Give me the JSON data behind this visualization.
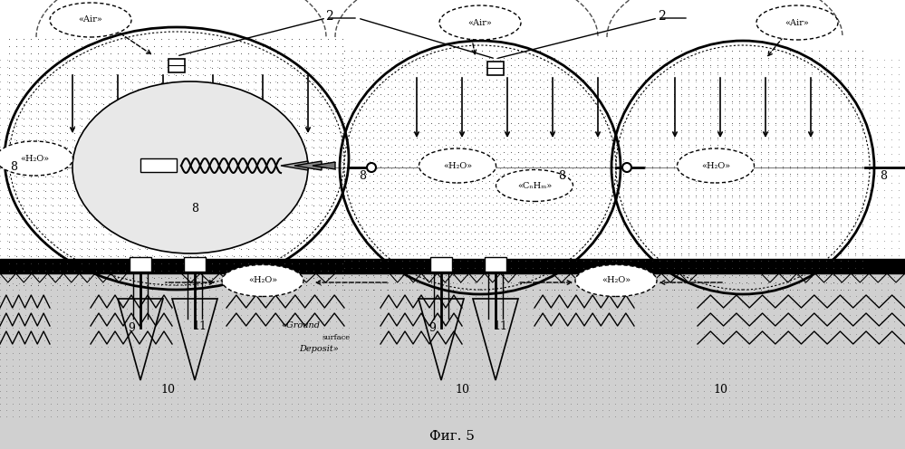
{
  "title": "Фиг. 5",
  "bg_color": "#ffffff",
  "fig_width": 9.99,
  "fig_height": 4.96,
  "labels": {
    "air": "«Air»",
    "h2o": "«H₂O»",
    "cnhm": "«CₙHₘ»",
    "ground": "«Ground",
    "surface": "surface",
    "deposit": "Deposit»"
  },
  "numbers": {
    "2": "2",
    "8": "8",
    "9": "9",
    "10": "10",
    "11": "11"
  },
  "label_fontsize": 9,
  "number2_fontsize": 10
}
